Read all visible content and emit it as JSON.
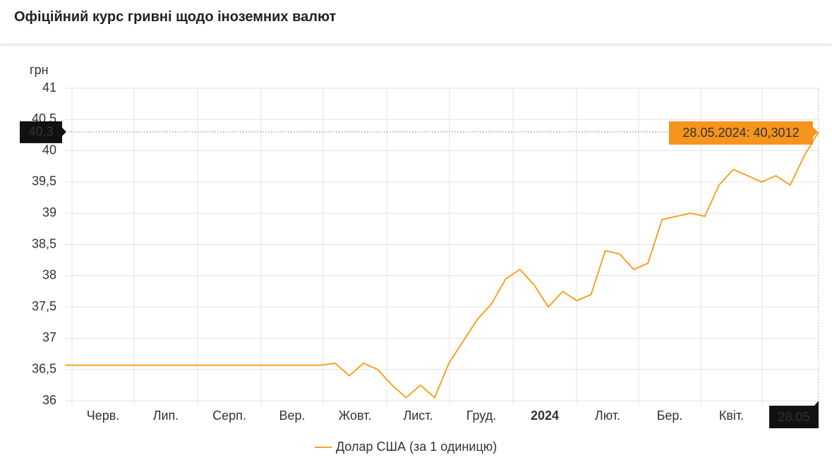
{
  "chart_data": {
    "type": "line",
    "title": "Офіційний курс гривні щодо іноземних валют",
    "y_unit": "грн",
    "xlabels": [
      "Черв.",
      "Лип.",
      "Серп.",
      "Вер.",
      "Жовт.",
      "Лист.",
      "Груд.",
      "2024",
      "Лют.",
      "Бер.",
      "Квіт."
    ],
    "series": [
      {
        "name": "Долар США (за 1 одиницю)",
        "color": "#f7a325",
        "values": [
          36.5686,
          36.5686,
          36.5686,
          36.5686,
          36.5686,
          36.5686,
          36.5686,
          36.5686,
          36.5686,
          36.5686,
          36.5686,
          36.5686,
          36.5686,
          36.5686,
          36.5686,
          36.5686,
          36.5686,
          36.5686,
          36.5686,
          36.6,
          36.4,
          36.6,
          36.5,
          36.25,
          36.05,
          36.25,
          36.05,
          36.6,
          36.95,
          37.3,
          37.55,
          37.95,
          38.1,
          37.85,
          37.5,
          37.75,
          37.6,
          37.7,
          38.4,
          38.35,
          38.1,
          38.2,
          38.9,
          38.95,
          39.0,
          38.95,
          39.45,
          39.7,
          39.6,
          39.5,
          39.6,
          39.45,
          39.92,
          40.3012
        ]
      }
    ],
    "ylim": [
      36,
      41
    ],
    "yticks": [
      36,
      {
        "value": 36.5,
        "label": "36,5"
      },
      37,
      {
        "value": 37.5,
        "label": "37,5"
      },
      38,
      {
        "value": 38.5,
        "label": "38,5"
      },
      39,
      {
        "value": 39.5,
        "label": "39,5"
      },
      40,
      {
        "value": 40.5,
        "label": "40,5"
      },
      41
    ],
    "grid": true,
    "crosshair": {
      "y_label": "40,3",
      "x_label": "28.05",
      "tooltip": "28.05.2024: 40,3012"
    },
    "legend": "bottom"
  }
}
